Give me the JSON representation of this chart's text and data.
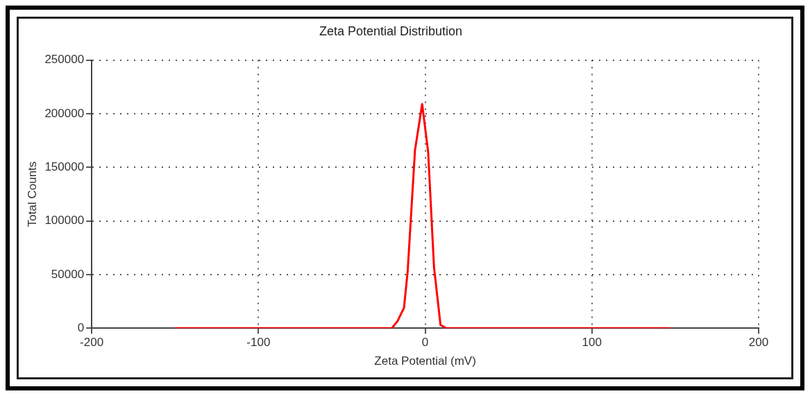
{
  "chart_data": {
    "type": "line",
    "title": "Zeta Potential Distribution",
    "xlabel": "Zeta Potential (mV)",
    "ylabel": "Total Counts",
    "x": [
      -150,
      -20,
      -16.6,
      -12.7,
      -10.5,
      -6.1,
      -1.8,
      1.8,
      5.3,
      9.2,
      12.7,
      147
    ],
    "series": [
      {
        "color": "#ff0000",
        "values": [
          0,
          0,
          6500,
          19000,
          53000,
          166000,
          209000,
          164000,
          57000,
          3000,
          0,
          0
        ]
      }
    ],
    "xlim": [
      -200,
      200
    ],
    "xticks": [
      -200,
      -100,
      0,
      100,
      200
    ],
    "ylim": [
      0,
      250000
    ],
    "yticks": [
      0,
      50000,
      100000,
      150000,
      200000,
      250000
    ],
    "grid": true,
    "legend": false,
    "marker": "none",
    "line_style": "solid"
  }
}
